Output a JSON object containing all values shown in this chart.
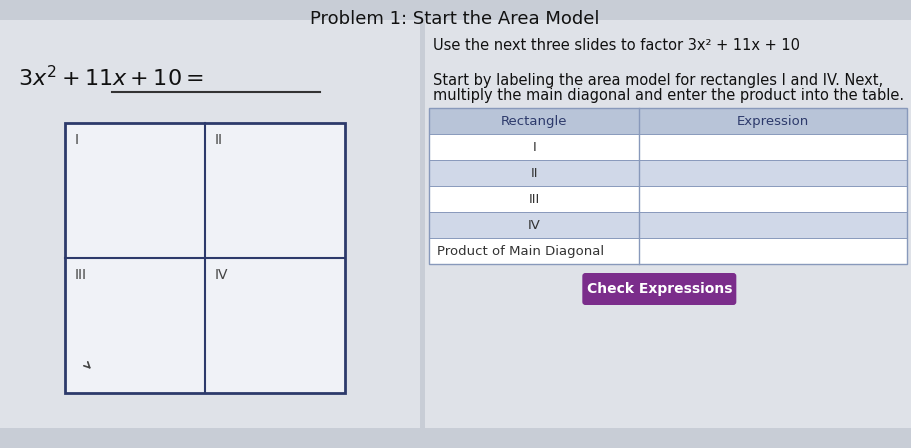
{
  "title": "Problem 1: Start the Area Model",
  "title_fontsize": 13,
  "background_color": "#c8cdd6",
  "equation_text_parts": [
    "3x",
    "2",
    " + 11x + 10 ="
  ],
  "equation_fontsize": 16,
  "instruction_line1": "Use the next three slides to factor 3x² + 11x + 10",
  "instruction_line2": "Start by labeling the area model for rectangles I and IV. Next,",
  "instruction_line3": "multiply the main diagonal and enter the product into the table.",
  "instruction_fontsize": 10.5,
  "area_grid_labels": [
    [
      "I",
      "II"
    ],
    [
      "III",
      "IV"
    ]
  ],
  "area_border_color": "#2d3a6b",
  "area_bg_color": "#f0f2f7",
  "left_panel_bg": "#e8eaef",
  "table_header_bg": "#b8c4d8",
  "table_row_bg_I": "#ffffff",
  "table_row_bg_II": "#d0d8e8",
  "table_row_bg_III": "#ffffff",
  "table_row_bg_IV": "#d0d8e8",
  "table_row_bg_product": "#ffffff",
  "table_header_text_color": "#2d3a6b",
  "table_border_color": "#8899bb",
  "table_row_text_color": "#333333",
  "table_headers": [
    "Rectangle",
    "Expression"
  ],
  "table_rows": [
    "I",
    "II",
    "III",
    "IV",
    "Product of Main Diagonal"
  ],
  "table_row_aligns": [
    "center",
    "center",
    "center",
    "center",
    "left"
  ],
  "table_fontsize": 9.5,
  "right_panel_bg": "#e8eaef",
  "button_text": "Check Expressions",
  "button_bg": "#7b2d8b",
  "button_text_color": "#ffffff",
  "button_fontsize": 10
}
